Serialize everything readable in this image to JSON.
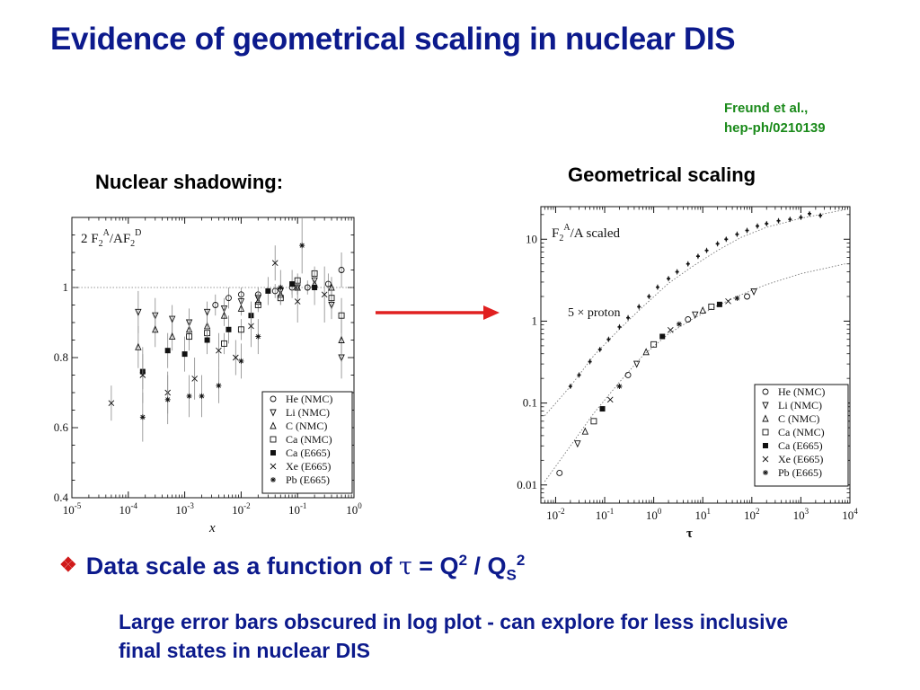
{
  "slide": {
    "title": "Evidence of geometrical scaling in nuclear DIS",
    "citation_line1": "Freund et al.,",
    "citation_line2": "hep-ph/0210139",
    "left_label": "Nuclear shadowing:",
    "right_label": "Geometrical scaling",
    "bullet_prefix": "Data scale as a function of ",
    "bullet_tau": "τ",
    "bullet_eq": " = Q",
    "bullet_sup1": "2",
    "bullet_slash": " / Q",
    "bullet_sub": "S",
    "bullet_sup2": "2",
    "note": "Large error bars obscured in log plot - can explore for less inclusive final states in nuclear DIS",
    "colors": {
      "title": "#0c1a8c",
      "citation": "#1a8a1a",
      "arrow": "#e02020",
      "bullet_marker": "#d01a1a"
    }
  },
  "chart_data": [
    {
      "type": "scatter",
      "title": "2 F2A/AF2D",
      "xlabel": "x",
      "xscale": "log",
      "xlim": [
        1e-05,
        1
      ],
      "ylim": [
        0.4,
        1.2
      ],
      "yticks": [
        "0.4",
        "0.6",
        "0.8",
        "1"
      ],
      "xticks": [
        {
          "base": "10",
          "exp": "-5"
        },
        {
          "base": "10",
          "exp": "-4"
        },
        {
          "base": "10",
          "exp": "-3"
        },
        {
          "base": "10",
          "exp": "-2"
        },
        {
          "base": "10",
          "exp": "-1"
        },
        {
          "base": "10",
          "exp": "0"
        }
      ],
      "reference_line_y": 1,
      "legend": [
        "He (NMC)",
        "Li (NMC)",
        "C (NMC)",
        "Ca (NMC)",
        "Ca (E665)",
        "Xe (E665)",
        "Pb (E665)"
      ],
      "legend_position": "bottom-right",
      "series": [
        {
          "name": "He (NMC)",
          "marker": "circle",
          "points": [
            [
              0.0035,
              0.95,
              0.03
            ],
            [
              0.006,
              0.97,
              0.03
            ],
            [
              0.01,
              0.98,
              0.02
            ],
            [
              0.02,
              0.98,
              0.02
            ],
            [
              0.04,
              0.99,
              0.02
            ],
            [
              0.08,
              1.0,
              0.02
            ],
            [
              0.15,
              1.0,
              0.02
            ],
            [
              0.35,
              1.01,
              0.03
            ],
            [
              0.6,
              1.05,
              0.05
            ]
          ]
        },
        {
          "name": "Li (NMC)",
          "marker": "triangle-down",
          "points": [
            [
              0.00015,
              0.93,
              0.06
            ],
            [
              0.0003,
              0.92,
              0.05
            ],
            [
              0.0006,
              0.91,
              0.04
            ],
            [
              0.0012,
              0.9,
              0.04
            ],
            [
              0.0025,
              0.93,
              0.03
            ],
            [
              0.005,
              0.94,
              0.03
            ],
            [
              0.01,
              0.96,
              0.02
            ],
            [
              0.02,
              0.97,
              0.02
            ],
            [
              0.05,
              0.99,
              0.02
            ],
            [
              0.1,
              1.0,
              0.02
            ],
            [
              0.2,
              1.02,
              0.02
            ],
            [
              0.4,
              0.95,
              0.04
            ],
            [
              0.6,
              0.8,
              0.06
            ]
          ]
        },
        {
          "name": "C (NMC)",
          "marker": "triangle-up",
          "points": [
            [
              0.00015,
              0.83,
              0.06
            ],
            [
              0.0003,
              0.88,
              0.05
            ],
            [
              0.0006,
              0.86,
              0.04
            ],
            [
              0.0012,
              0.88,
              0.03
            ],
            [
              0.0025,
              0.89,
              0.03
            ],
            [
              0.005,
              0.92,
              0.03
            ],
            [
              0.01,
              0.94,
              0.02
            ],
            [
              0.02,
              0.96,
              0.02
            ],
            [
              0.05,
              0.98,
              0.02
            ],
            [
              0.1,
              1.0,
              0.02
            ],
            [
              0.2,
              1.01,
              0.02
            ],
            [
              0.4,
              1.0,
              0.03
            ],
            [
              0.6,
              0.85,
              0.06
            ]
          ]
        },
        {
          "name": "Ca (NMC)",
          "marker": "square",
          "points": [
            [
              0.0012,
              0.86,
              0.04
            ],
            [
              0.0025,
              0.87,
              0.03
            ],
            [
              0.005,
              0.84,
              0.03
            ],
            [
              0.01,
              0.88,
              0.03
            ],
            [
              0.02,
              0.95,
              0.02
            ],
            [
              0.05,
              0.97,
              0.02
            ],
            [
              0.1,
              1.02,
              0.02
            ],
            [
              0.2,
              1.04,
              0.02
            ],
            [
              0.4,
              0.97,
              0.03
            ],
            [
              0.6,
              0.92,
              0.05
            ]
          ]
        },
        {
          "name": "Ca (E665)",
          "marker": "square-filled",
          "points": [
            [
              0.00018,
              0.76,
              0.05
            ],
            [
              0.0005,
              0.82,
              0.05
            ],
            [
              0.001,
              0.81,
              0.05
            ],
            [
              0.0025,
              0.85,
              0.04
            ],
            [
              0.006,
              0.88,
              0.04
            ],
            [
              0.015,
              0.92,
              0.04
            ],
            [
              0.03,
              0.99,
              0.04
            ],
            [
              0.08,
              1.01,
              0.04
            ],
            [
              0.2,
              1.0,
              0.05
            ]
          ]
        },
        {
          "name": "Xe (E665)",
          "marker": "cross",
          "points": [
            [
              5e-05,
              0.67,
              0.05
            ],
            [
              0.00018,
              0.75,
              0.08
            ],
            [
              0.0005,
              0.7,
              0.06
            ],
            [
              0.0015,
              0.74,
              0.06
            ],
            [
              0.004,
              0.82,
              0.05
            ],
            [
              0.008,
              0.8,
              0.05
            ],
            [
              0.015,
              0.89,
              0.06
            ],
            [
              0.04,
              1.07,
              0.05
            ],
            [
              0.1,
              0.96,
              0.06
            ],
            [
              0.3,
              0.98,
              0.08
            ]
          ]
        },
        {
          "name": "Pb (E665)",
          "marker": "asterisk",
          "points": [
            [
              0.00018,
              0.63,
              0.07
            ],
            [
              0.0005,
              0.68,
              0.07
            ],
            [
              0.0012,
              0.69,
              0.06
            ],
            [
              0.002,
              0.69,
              0.06
            ],
            [
              0.004,
              0.72,
              0.05
            ],
            [
              0.01,
              0.79,
              0.05
            ],
            [
              0.02,
              0.86,
              0.05
            ],
            [
              0.05,
              1.0,
              0.05
            ],
            [
              0.12,
              1.12,
              0.08
            ]
          ]
        }
      ]
    },
    {
      "type": "scatter",
      "title": "F2A/A  scaled",
      "annotation": "5 × proton",
      "xlabel": "τ",
      "xscale": "log",
      "yscale": "log",
      "xlim": [
        0.005,
        10000
      ],
      "ylim": [
        0.006,
        25
      ],
      "yticks": [
        "0.01",
        "0.1",
        "1",
        "10"
      ],
      "xticks": [
        {
          "base": "10",
          "exp": "-2"
        },
        {
          "base": "10",
          "exp": "-1"
        },
        {
          "base": "10",
          "exp": "0"
        },
        {
          "base": "10",
          "exp": "1"
        },
        {
          "base": "10",
          "exp": "2"
        },
        {
          "base": "10",
          "exp": "3"
        },
        {
          "base": "10",
          "exp": "4"
        }
      ],
      "legend": [
        "He (NMC)",
        "Li (NMC)",
        "C (NMC)",
        "Ca (NMC)",
        "Ca (E665)",
        "Xe (E665)",
        "Pb (E665)"
      ],
      "legend_position": "bottom-right",
      "curves": [
        {
          "name": "nuclear-fit",
          "points": [
            [
              0.006,
              0.011
            ],
            [
              0.02,
              0.03
            ],
            [
              0.06,
              0.075
            ],
            [
              0.2,
              0.18
            ],
            [
              0.6,
              0.38
            ],
            [
              2,
              0.7
            ],
            [
              6,
              1.05
            ],
            [
              20,
              1.55
            ],
            [
              60,
              2.1
            ],
            [
              200,
              2.8
            ],
            [
              1000,
              3.8
            ],
            [
              8000,
              5.0
            ]
          ]
        },
        {
          "name": "proton-fit",
          "points": [
            [
              0.006,
              0.07
            ],
            [
              0.02,
              0.16
            ],
            [
              0.06,
              0.38
            ],
            [
              0.2,
              0.8
            ],
            [
              0.6,
              1.5
            ],
            [
              2,
              2.9
            ],
            [
              6,
              4.6
            ],
            [
              20,
              7.3
            ],
            [
              60,
              10.5
            ],
            [
              200,
              14
            ],
            [
              1000,
              18
            ],
            [
              8000,
              23
            ]
          ]
        }
      ],
      "series": [
        {
          "name": "nuclear data",
          "marker": "mixed",
          "points": [
            [
              0.012,
              0.014
            ],
            [
              0.028,
              0.032
            ],
            [
              0.04,
              0.045
            ],
            [
              0.06,
              0.06
            ],
            [
              0.09,
              0.085
            ],
            [
              0.13,
              0.11
            ],
            [
              0.2,
              0.16
            ],
            [
              0.3,
              0.22
            ],
            [
              0.45,
              0.3
            ],
            [
              0.7,
              0.42
            ],
            [
              1.0,
              0.52
            ],
            [
              1.5,
              0.65
            ],
            [
              2.2,
              0.78
            ],
            [
              3.3,
              0.92
            ],
            [
              5,
              1.05
            ],
            [
              7,
              1.2
            ],
            [
              10,
              1.35
            ],
            [
              15,
              1.5
            ],
            [
              22,
              1.6
            ],
            [
              33,
              1.75
            ],
            [
              50,
              1.9
            ],
            [
              80,
              2.0
            ],
            [
              110,
              2.3
            ]
          ]
        },
        {
          "name": "5 × proton",
          "marker": "plus",
          "points": [
            [
              0.02,
              0.16
            ],
            [
              0.03,
              0.22
            ],
            [
              0.05,
              0.32
            ],
            [
              0.08,
              0.45
            ],
            [
              0.12,
              0.6
            ],
            [
              0.2,
              0.85
            ],
            [
              0.3,
              1.1
            ],
            [
              0.5,
              1.5
            ],
            [
              0.8,
              2.0
            ],
            [
              1.2,
              2.6
            ],
            [
              2,
              3.3
            ],
            [
              3,
              4.0
            ],
            [
              5,
              5.0
            ],
            [
              8,
              6.2
            ],
            [
              12,
              7.3
            ],
            [
              20,
              8.8
            ],
            [
              30,
              10.0
            ],
            [
              50,
              11.5
            ],
            [
              80,
              12.8
            ],
            [
              130,
              14.5
            ],
            [
              200,
              15.5
            ],
            [
              350,
              16.8
            ],
            [
              600,
              17.5
            ],
            [
              1000,
              18.5
            ],
            [
              1500,
              20.5
            ],
            [
              2500,
              19.5
            ]
          ]
        }
      ]
    }
  ]
}
